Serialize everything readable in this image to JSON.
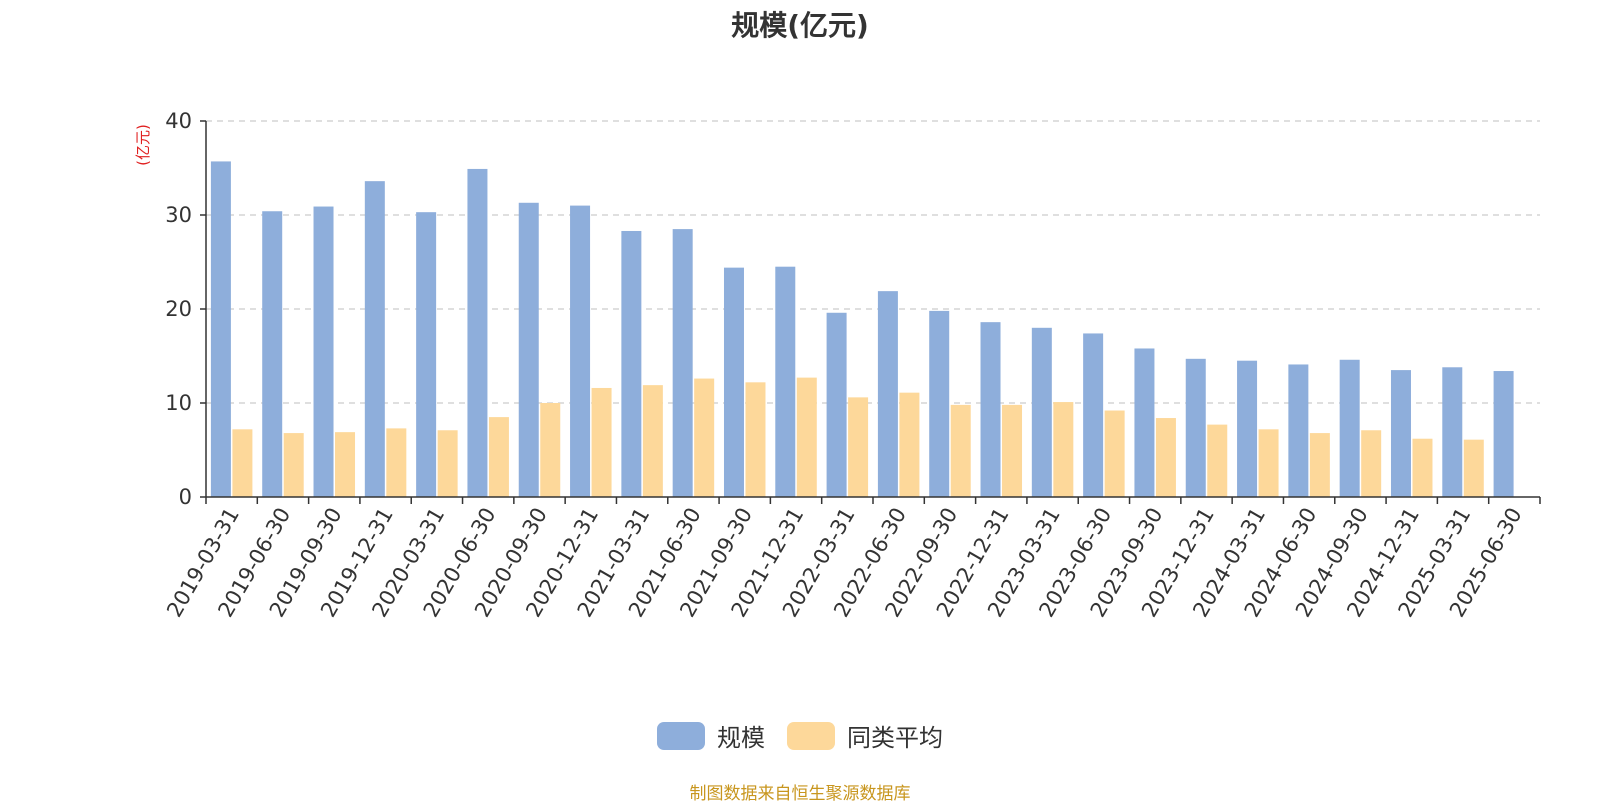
{
  "chart_data": {
    "type": "bar",
    "title": "规模(亿元)",
    "ylabel": "(亿元)",
    "ylim": [
      0,
      40
    ],
    "yticks": [
      0,
      10,
      20,
      30,
      40
    ],
    "grid": true,
    "legend_position": "bottom",
    "categories": [
      "2019-03-31",
      "2019-06-30",
      "2019-09-30",
      "2019-12-31",
      "2020-03-31",
      "2020-06-30",
      "2020-09-30",
      "2020-12-31",
      "2021-03-31",
      "2021-06-30",
      "2021-09-30",
      "2021-12-31",
      "2022-03-31",
      "2022-06-30",
      "2022-09-30",
      "2022-12-31",
      "2023-03-31",
      "2023-06-30",
      "2023-09-30",
      "2023-12-31",
      "2024-03-31",
      "2024-06-30",
      "2024-09-30",
      "2024-12-31",
      "2025-03-31",
      "2025-06-30"
    ],
    "series": [
      {
        "name": "规模",
        "color": "#8eaedb",
        "values": [
          35.7,
          30.4,
          30.9,
          33.6,
          30.3,
          34.9,
          31.3,
          31.0,
          28.3,
          28.5,
          24.4,
          24.5,
          19.6,
          21.9,
          19.8,
          18.6,
          18.0,
          17.4,
          15.8,
          14.7,
          14.5,
          14.1,
          14.6,
          13.5,
          13.8,
          13.4
        ]
      },
      {
        "name": "同类平均",
        "color": "#fdd89a",
        "values": [
          7.2,
          6.8,
          6.9,
          7.3,
          7.1,
          8.5,
          10.0,
          11.6,
          11.9,
          12.6,
          12.2,
          12.7,
          10.6,
          11.1,
          9.8,
          9.8,
          10.1,
          9.2,
          8.4,
          7.7,
          7.2,
          6.8,
          7.1,
          6.2,
          6.1,
          null
        ]
      }
    ],
    "source_note": "制图数据来自恒生聚源数据库"
  },
  "colors": {
    "title": "#333333",
    "axis": "#333333",
    "grid": "#cccccc",
    "ylabel": "#e02020",
    "source_note": "#c8961e"
  }
}
